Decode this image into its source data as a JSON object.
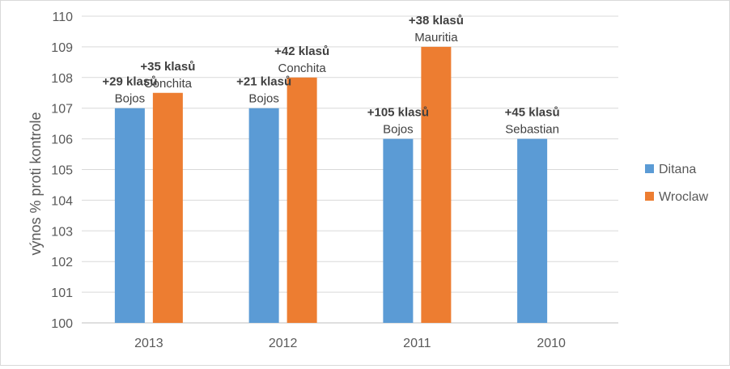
{
  "chart_data": {
    "type": "bar",
    "title": "",
    "xlabel": "",
    "ylabel": "výnos % proti kontrole",
    "categories": [
      "2013",
      "2012",
      "2011",
      "2010"
    ],
    "ylim": [
      100,
      110
    ],
    "yticks": [
      100,
      101,
      102,
      103,
      104,
      105,
      106,
      107,
      108,
      109,
      110
    ],
    "grid": true,
    "legend_position": "right",
    "series": [
      {
        "name": "Ditana",
        "color": "#5b9bd5",
        "values": [
          107,
          107,
          106,
          106
        ],
        "annotations": [
          {
            "bold": "+29 klasů",
            "label": "Bojos"
          },
          {
            "bold": "+21 klasů",
            "label": "Bojos"
          },
          {
            "bold": "+105 klasů",
            "label": "Bojos"
          },
          {
            "bold": "+45 klasů",
            "label": "Sebastian"
          }
        ]
      },
      {
        "name": "Wroclaw",
        "color": "#ed7d31",
        "values": [
          107.5,
          108,
          109,
          null
        ],
        "annotations": [
          {
            "bold": "+35 klasů",
            "label": "Conchita"
          },
          {
            "bold": "+42 klasů",
            "label": "Conchita"
          },
          {
            "bold": "+38 klasů",
            "label": "Mauritia"
          },
          null
        ]
      }
    ]
  }
}
